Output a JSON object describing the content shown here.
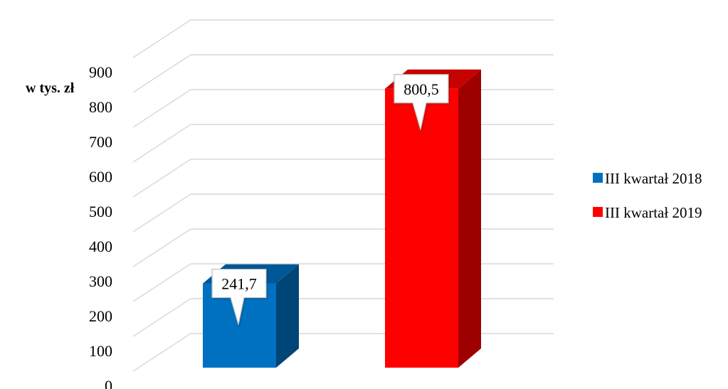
{
  "chart_data": {
    "type": "bar",
    "categories": [
      ""
    ],
    "series": [
      {
        "name": "III kwartał 2018",
        "values": [
          241.7
        ],
        "color": "#0070C0",
        "label": "241,7"
      },
      {
        "name": "III kwartał 2019",
        "values": [
          800.5
        ],
        "color": "#FF0000",
        "label": "800,5"
      }
    ],
    "ylabel": "w tys. zł",
    "ylim": [
      0,
      900
    ],
    "yticks": [
      "0",
      "100",
      "200",
      "300",
      "400",
      "500",
      "600",
      "700",
      "800",
      "900"
    ],
    "grid": true,
    "legend_position": "right",
    "style": "3d-column"
  }
}
